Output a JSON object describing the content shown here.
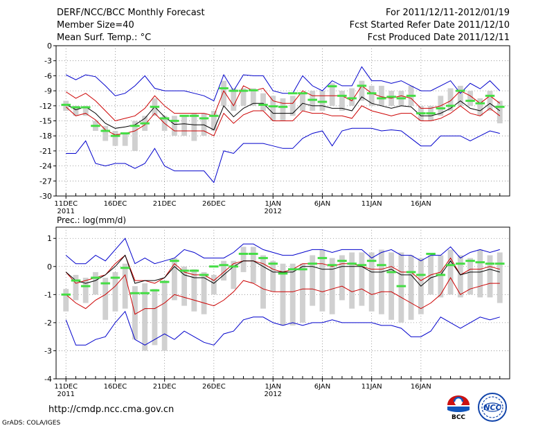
{
  "header": {
    "title": "DERF/NCC/BCC Monthly Forecast",
    "member_size": "Member Size=40",
    "period": "For 2011/12/11-2012/01/19",
    "fcst_start": "Fcst Started Refer Date 2011/12/10",
    "fcst_produced": "Fcst Produced Date 2011/12/11"
  },
  "footer": {
    "url": "http://cmdp.ncc.cma.gov.cn",
    "grads": "GrADS: COLA/IGES"
  },
  "logos": {
    "bcc_text": "BCC",
    "ncc_text": "NCC"
  },
  "colors": {
    "blue": "#0000cc",
    "red": "#cc0000",
    "green": "#44dd44",
    "gray": "#d0d0d0",
    "black": "#000000"
  },
  "chart_data": [
    {
      "type": "line",
      "title": "Mean Surf. Temp.: °C",
      "ylim": [
        -30,
        0
      ],
      "yticks": [
        0,
        -3,
        -6,
        -9,
        -12,
        -15,
        -18,
        -21,
        -24,
        -27,
        -30
      ],
      "x_tick_labels": [
        {
          "day": 0,
          "label": "11DEC",
          "sub": "2011"
        },
        {
          "day": 5,
          "label": "16DEC",
          "sub": ""
        },
        {
          "day": 10,
          "label": "21DEC",
          "sub": ""
        },
        {
          "day": 15,
          "label": "26DEC",
          "sub": ""
        },
        {
          "day": 21,
          "label": "1JAN",
          "sub": "2012"
        },
        {
          "day": 26,
          "label": "6JAN",
          "sub": ""
        },
        {
          "day": 31,
          "label": "11JAN",
          "sub": ""
        },
        {
          "day": 36,
          "label": "16JAN",
          "sub": ""
        }
      ],
      "max": [
        -5.8,
        -6.8,
        -5.8,
        -6.2,
        -8,
        -10,
        -9.5,
        -8,
        -6,
        -8.5,
        -9,
        -9,
        -9,
        -9.5,
        -10,
        -11,
        -5.8,
        -9,
        -5.8,
        -6,
        -6,
        -9,
        -9.5,
        -9.5,
        -6,
        -8,
        -9,
        -7,
        -8,
        -8,
        -4.2,
        -7,
        -7,
        -7.5,
        -7,
        -8,
        -9,
        -9,
        -8,
        -7,
        -9.5,
        -7.5,
        -8.6,
        -7,
        -9
      ],
      "upper": [
        -9.2,
        -10.5,
        -9.5,
        -11,
        -13,
        -15,
        -14.5,
        -14,
        -12.5,
        -10,
        -12,
        -13.5,
        -13.5,
        -13.5,
        -13.5,
        -14,
        -9,
        -12,
        -8,
        -9,
        -8.5,
        -11,
        -11.5,
        -11.5,
        -9,
        -10,
        -10,
        -10,
        -10,
        -11,
        -8,
        -9.5,
        -10.2,
        -10.5,
        -10,
        -10.5,
        -12.5,
        -12.5,
        -12,
        -11,
        -9,
        -10,
        -11.5,
        -10,
        -11.5
      ],
      "mean": [
        -11.7,
        -12.8,
        -12.2,
        -13.5,
        -15.5,
        -16.5,
        -16.2,
        -15.8,
        -14.5,
        -12.2,
        -14.2,
        -15.7,
        -15.6,
        -15.8,
        -15.8,
        -16.8,
        -12,
        -14.2,
        -12.5,
        -11.5,
        -11.5,
        -13.5,
        -13.5,
        -13.5,
        -11.5,
        -12,
        -12,
        -12.5,
        -12.5,
        -13,
        -10.2,
        -11.5,
        -12,
        -12.5,
        -12,
        -12.2,
        -14,
        -14,
        -13.5,
        -12.5,
        -11,
        -12.5,
        -13,
        -11.5,
        -13
      ],
      "lower": [
        -12.2,
        -14,
        -13.5,
        -14.8,
        -16.8,
        -17.8,
        -17.5,
        -17,
        -15.8,
        -13.5,
        -15.5,
        -17,
        -17,
        -17,
        -17,
        -18,
        -13.5,
        -15.5,
        -13.8,
        -13,
        -13,
        -15,
        -15,
        -15,
        -13,
        -13.5,
        -13.5,
        -14,
        -14,
        -14.5,
        -12,
        -13,
        -13.5,
        -14,
        -13.5,
        -13.5,
        -15,
        -15,
        -14.5,
        -13.5,
        -12,
        -13.5,
        -14,
        -12.5,
        -14
      ],
      "min": [
        -21.5,
        -21.5,
        -19,
        -23.5,
        -24,
        -23.5,
        -23.5,
        -24.5,
        -23.5,
        -20.5,
        -24,
        -25,
        -25,
        -25,
        -25,
        -27.3,
        -21,
        -21.5,
        -19.5,
        -19.5,
        -19.5,
        -20,
        -20.5,
        -20.5,
        -18.5,
        -17.5,
        -17,
        -20,
        -17,
        -16.5,
        -16.5,
        -16.5,
        -17,
        -16.8,
        -17,
        -18.5,
        -20,
        -20,
        -18,
        -18,
        -18,
        -19,
        -18,
        -17,
        -17.5
      ],
      "bar_top": [
        -11,
        -12,
        -12,
        -15,
        -16,
        -17,
        -17.5,
        -15,
        -14,
        -10.5,
        -14,
        -14,
        -14,
        -13.5,
        -13.5,
        -13,
        -7,
        -8.5,
        -8.5,
        -8.5,
        -9.5,
        -10,
        -10.5,
        -10,
        -9.5,
        -9,
        -9,
        -7.5,
        -9,
        -8.5,
        -7,
        -8,
        -8,
        -9,
        -9,
        -8,
        -12,
        -12,
        -10,
        -8.5,
        -8,
        -9,
        -10.5,
        -9,
        -11
      ],
      "bar_bottom": [
        -13,
        -14,
        -14,
        -17,
        -19,
        -20,
        -20,
        -21,
        -17,
        -14,
        -17,
        -18,
        -18,
        -19,
        -18,
        -17,
        -12,
        -13,
        -12,
        -12,
        -13,
        -15,
        -15,
        -14,
        -13,
        -13,
        -13,
        -12,
        -13,
        -12,
        -11,
        -12,
        -12,
        -12,
        -12,
        -12,
        -15,
        -15,
        -14,
        -13,
        -12,
        -12,
        -14,
        -13,
        -15.5
      ],
      "median": [
        -11.8,
        -12.3,
        -12.3,
        -16,
        -17,
        -18,
        -17.5,
        -16,
        -15.5,
        -12.2,
        -14.5,
        -15,
        -14,
        -14,
        -14.5,
        -14,
        -8.5,
        -9,
        -9,
        -8.9,
        -11.8,
        -12.1,
        -12.2,
        -9.5,
        -9.5,
        -10.8,
        -11.2,
        -8.1,
        -10,
        -10.5,
        -8,
        -9.5,
        -10.5,
        -10.2,
        -10.5,
        -10,
        -13.5,
        -13.5,
        -12.5,
        -12,
        -9,
        -11,
        -11.5,
        -10,
        -12.2
      ]
    },
    {
      "type": "line",
      "title": "Prec.: log(mm/d)",
      "ylim": [
        -4,
        1.4
      ],
      "yticks": [
        1,
        0,
        -1,
        -2,
        -3,
        -4
      ],
      "x_tick_labels": [
        {
          "day": 0,
          "label": "11DEC",
          "sub": "2011"
        },
        {
          "day": 5,
          "label": "16DEC",
          "sub": ""
        },
        {
          "day": 10,
          "label": "21DEC",
          "sub": ""
        },
        {
          "day": 15,
          "label": "26DEC",
          "sub": ""
        },
        {
          "day": 21,
          "label": "1JAN",
          "sub": "2012"
        },
        {
          "day": 26,
          "label": "6JAN",
          "sub": ""
        },
        {
          "day": 31,
          "label": "11JAN",
          "sub": ""
        },
        {
          "day": 36,
          "label": "16JAN",
          "sub": ""
        }
      ],
      "max": [
        0.4,
        0.1,
        0.1,
        0.4,
        0.2,
        0.6,
        1.0,
        0.1,
        0.3,
        0.1,
        0.2,
        0.3,
        0.6,
        0.5,
        0.3,
        0.3,
        0.3,
        0.5,
        0.8,
        0.8,
        0.6,
        0.5,
        0.4,
        0.4,
        0.5,
        0.6,
        0.6,
        0.5,
        0.6,
        0.6,
        0.6,
        0.3,
        0.5,
        0.6,
        0.4,
        0.4,
        0.2,
        0.4,
        0.4,
        0.7,
        0.3,
        0.5,
        0.6,
        0.5,
        0.6
      ],
      "upper": [
        -0.2,
        -0.6,
        -0.5,
        -0.4,
        -0.3,
        0.1,
        0.4,
        -0.5,
        -0.5,
        -0.6,
        -0.4,
        0.1,
        -0.2,
        -0.3,
        -0.3,
        -0.5,
        -0.2,
        0.1,
        0.2,
        0.2,
        0.1,
        -0.1,
        -0.2,
        -0.1,
        0.1,
        0.1,
        0.1,
        0.0,
        0.1,
        0.1,
        0.0,
        -0.1,
        -0.1,
        0.0,
        -0.2,
        -0.2,
        -0.5,
        -0.3,
        -0.2,
        0.3,
        -0.3,
        -0.1,
        -0.1,
        0.0,
        -0.1
      ],
      "mean": [
        -0.2,
        -0.5,
        -0.6,
        -0.5,
        -0.3,
        0.0,
        0.4,
        -0.6,
        -0.5,
        -0.5,
        -0.4,
        0.0,
        -0.3,
        -0.4,
        -0.4,
        -0.6,
        -0.3,
        0.0,
        0.2,
        0.2,
        0.0,
        -0.2,
        -0.2,
        -0.2,
        0.0,
        0.0,
        -0.1,
        -0.1,
        0.0,
        0.0,
        0.0,
        -0.2,
        -0.2,
        -0.1,
        -0.3,
        -0.3,
        -0.7,
        -0.4,
        -0.3,
        0.2,
        -0.3,
        -0.2,
        -0.2,
        -0.1,
        -0.2
      ],
      "lower": [
        -1.0,
        -1.3,
        -1.5,
        -1.2,
        -1.0,
        -0.7,
        -0.3,
        -1.7,
        -1.5,
        -1.5,
        -1.3,
        -1.0,
        -1.1,
        -1.2,
        -1.3,
        -1.4,
        -1.2,
        -0.9,
        -0.5,
        -0.6,
        -0.8,
        -0.9,
        -0.9,
        -0.9,
        -0.8,
        -0.8,
        -0.9,
        -0.8,
        -0.7,
        -0.9,
        -0.8,
        -1.0,
        -0.9,
        -0.9,
        -1.1,
        -1.3,
        -1.5,
        -1.3,
        -1.0,
        -0.4,
        -1.0,
        -0.8,
        -0.7,
        -0.6,
        -0.6
      ],
      "min": [
        -1.9,
        -2.8,
        -2.8,
        -2.6,
        -2.5,
        -2.0,
        -1.6,
        -2.6,
        -2.8,
        -2.6,
        -2.4,
        -2.6,
        -2.3,
        -2.5,
        -2.7,
        -2.8,
        -2.4,
        -2.3,
        -1.9,
        -1.8,
        -1.8,
        -2.0,
        -2.1,
        -2.0,
        -2.1,
        -2.0,
        -2.0,
        -1.9,
        -2.0,
        -2.0,
        -2.0,
        -2.0,
        -2.1,
        -2.1,
        -2.2,
        -2.5,
        -2.5,
        -2.3,
        -1.8,
        -2.0,
        -2.2,
        -2.0,
        -1.8,
        -1.9,
        -1.8
      ],
      "bar_top": [
        -0.8,
        -0.3,
        -0.4,
        -0.2,
        -0.4,
        -0.2,
        0.1,
        -0.7,
        -0.6,
        -0.8,
        -0.5,
        0.3,
        0.0,
        -0.1,
        -0.2,
        -0.3,
        0.2,
        0.2,
        0.7,
        0.7,
        0.4,
        0.2,
        0.1,
        0.1,
        0.1,
        0.4,
        0.6,
        0.3,
        0.4,
        0.5,
        0.5,
        0.5,
        0.6,
        0.5,
        0.5,
        0.4,
        0.3,
        0.4,
        0.4,
        0.6,
        0.4,
        0.3,
        0.6,
        0.4,
        0.5
      ],
      "bar_bottom": [
        -1.6,
        -1.2,
        -1.3,
        -1.0,
        -1.9,
        -1.6,
        -1.5,
        -2.6,
        -3.0,
        -2.8,
        -3.0,
        -1.2,
        -1.4,
        -1.6,
        -1.7,
        -1.0,
        -0.5,
        -0.8,
        -0.2,
        -0.6,
        -1.5,
        -0.9,
        -2.1,
        -2.1,
        -2.0,
        -1.4,
        -1.6,
        -1.7,
        -1.2,
        -1.5,
        -1.4,
        -1.6,
        -1.7,
        -1.9,
        -2.0,
        -1.9,
        -1.7,
        -1.0,
        -1.1,
        -1.0,
        -1.1,
        -1.0,
        -1.1,
        -1.1,
        -1.3
      ],
      "median": [
        -1.0,
        -0.5,
        -0.7,
        -0.4,
        -0.6,
        -0.4,
        -0.05,
        -0.95,
        -0.95,
        -0.85,
        -0.55,
        0.2,
        -0.15,
        -0.15,
        -0.3,
        0.0,
        0.05,
        0.0,
        0.45,
        0.45,
        0.3,
        0.1,
        -0.25,
        -0.1,
        -0.1,
        0.1,
        0.3,
        0.05,
        0.2,
        0.1,
        0.05,
        0.2,
        0.05,
        -0.2,
        -0.7,
        -0.2,
        -0.3,
        0.45,
        -0.3,
        0.05,
        0.1,
        0.2,
        0.15,
        0.1,
        0.1
      ]
    }
  ]
}
